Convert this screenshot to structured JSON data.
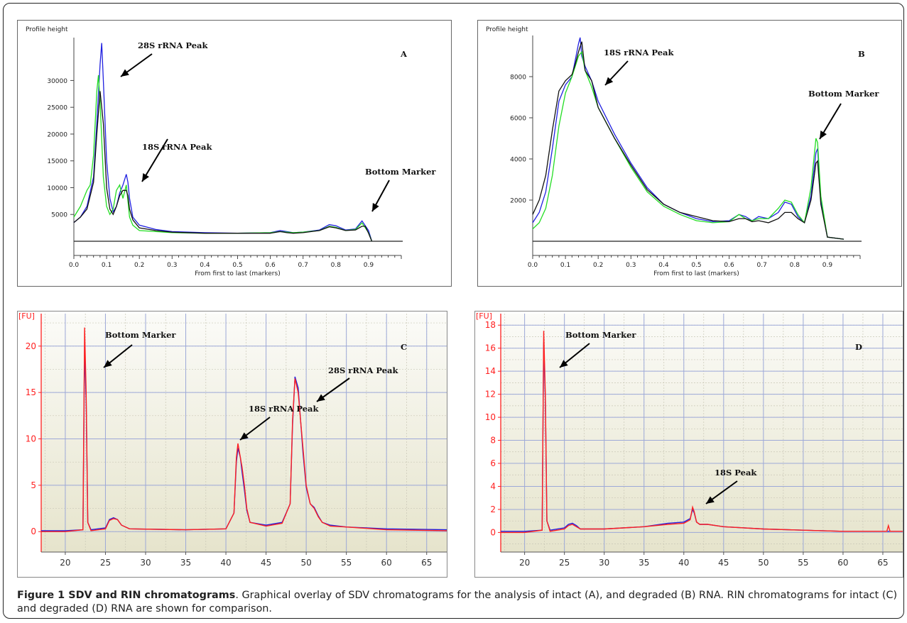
{
  "caption": {
    "title": "Figure 1 SDV and RIN chromatograms",
    "text": ". Graphical overlay of SDV chromatograms for the analysis of intact (A), and degraded (B) RNA. RIN chromatograms for intact (C) and degraded (D) RNA are shown for comparison."
  },
  "colors": {
    "blue": "#2020e0",
    "green": "#22dd22",
    "black": "#111111",
    "red": "#ff2020",
    "fu_axis": "#ff2020"
  },
  "chart_data": [
    {
      "id": "A",
      "type": "line",
      "panel_letter": "A",
      "ylabel": "Profile height",
      "xlabel": "From first to last (markers)",
      "xlim": [
        0,
        1.0
      ],
      "ylim": [
        0,
        38000
      ],
      "xticks": [
        "0.0",
        "0.1",
        "0.2",
        "0.3",
        "0.4",
        "0.5",
        "0.6",
        "0.7",
        "0.8",
        "0.9"
      ],
      "yticks": [
        "5000",
        "10000",
        "15000",
        "20000",
        "25000",
        "30000"
      ],
      "ytick_values": [
        5000,
        10000,
        15000,
        20000,
        25000,
        30000
      ],
      "annotations": [
        "28S rRNA Peak",
        "18S rRNA Peak",
        "Bottom Marker"
      ],
      "series": [
        {
          "color": "blue",
          "x": [
            0,
            0.02,
            0.04,
            0.06,
            0.07,
            0.08,
            0.085,
            0.09,
            0.1,
            0.11,
            0.12,
            0.13,
            0.14,
            0.15,
            0.16,
            0.165,
            0.17,
            0.18,
            0.2,
            0.25,
            0.3,
            0.4,
            0.5,
            0.6,
            0.63,
            0.65,
            0.67,
            0.7,
            0.75,
            0.78,
            0.8,
            0.83,
            0.86,
            0.88,
            0.9,
            0.91
          ],
          "y": [
            3500,
            4500,
            6500,
            12000,
            22000,
            33000,
            37000,
            30000,
            15000,
            8000,
            5500,
            6500,
            9000,
            10500,
            12500,
            11000,
            8000,
            4500,
            3000,
            2200,
            1800,
            1600,
            1500,
            1600,
            2000,
            1800,
            1600,
            1700,
            2100,
            3100,
            2900,
            2100,
            2300,
            3800,
            2000,
            0
          ]
        },
        {
          "color": "green",
          "x": [
            0,
            0.02,
            0.04,
            0.05,
            0.06,
            0.07,
            0.075,
            0.08,
            0.09,
            0.1,
            0.11,
            0.12,
            0.13,
            0.14,
            0.15,
            0.16,
            0.17,
            0.18,
            0.2,
            0.25,
            0.3,
            0.4,
            0.5,
            0.6,
            0.63,
            0.65,
            0.67,
            0.7,
            0.75,
            0.78,
            0.8,
            0.83,
            0.86,
            0.88,
            0.9,
            0.91
          ],
          "y": [
            4500,
            6500,
            9500,
            10500,
            16000,
            28000,
            31000,
            26000,
            12000,
            6500,
            5000,
            6000,
            9500,
            10500,
            8000,
            10500,
            4500,
            3000,
            2000,
            1800,
            1600,
            1500,
            1500,
            1600,
            1800,
            1700,
            1600,
            1700,
            2000,
            2800,
            2600,
            2000,
            2200,
            3400,
            1600,
            0
          ]
        },
        {
          "color": "black",
          "x": [
            0,
            0.02,
            0.04,
            0.06,
            0.07,
            0.08,
            0.09,
            0.1,
            0.11,
            0.12,
            0.13,
            0.14,
            0.15,
            0.16,
            0.165,
            0.17,
            0.18,
            0.2,
            0.25,
            0.3,
            0.4,
            0.5,
            0.6,
            0.63,
            0.65,
            0.67,
            0.7,
            0.75,
            0.78,
            0.8,
            0.83,
            0.86,
            0.88,
            0.89,
            0.9,
            0.91
          ],
          "y": [
            3500,
            4500,
            6000,
            11000,
            20000,
            28000,
            22000,
            10000,
            6000,
            5000,
            6500,
            8500,
            9500,
            9500,
            8500,
            6000,
            4000,
            2500,
            2000,
            1700,
            1500,
            1500,
            1500,
            1800,
            1600,
            1500,
            1600,
            2000,
            2700,
            2500,
            2000,
            2100,
            2800,
            2800,
            1500,
            0
          ]
        }
      ]
    },
    {
      "id": "B",
      "type": "line",
      "panel_letter": "B",
      "ylabel": "Profile height",
      "xlabel": "From first to last (markers)",
      "xlim": [
        0,
        1.0
      ],
      "ylim": [
        0,
        10000
      ],
      "xticks": [
        "0.0",
        "0.1",
        "0.2",
        "0.3",
        "0.4",
        "0.5",
        "0.6",
        "0.7",
        "0.8",
        "0.9"
      ],
      "yticks": [
        "2000",
        "4000",
        "6000",
        "8000"
      ],
      "ytick_values": [
        2000,
        4000,
        6000,
        8000
      ],
      "annotations": [
        "18S rRNA Peak",
        "Bottom Marker"
      ],
      "series": [
        {
          "color": "blue",
          "x": [
            0,
            0.02,
            0.04,
            0.06,
            0.08,
            0.1,
            0.12,
            0.13,
            0.14,
            0.145,
            0.15,
            0.16,
            0.18,
            0.2,
            0.25,
            0.3,
            0.35,
            0.4,
            0.45,
            0.5,
            0.55,
            0.6,
            0.63,
            0.65,
            0.67,
            0.69,
            0.72,
            0.75,
            0.77,
            0.79,
            0.81,
            0.83,
            0.85,
            0.865,
            0.87,
            0.88,
            0.9,
            0.95
          ],
          "y": [
            900,
            1400,
            2400,
            4500,
            6800,
            7600,
            8000,
            8800,
            9600,
            9900,
            9000,
            8500,
            7800,
            6800,
            5200,
            3800,
            2600,
            1800,
            1400,
            1100,
            950,
            1000,
            1300,
            1200,
            1000,
            1200,
            1100,
            1400,
            1900,
            1800,
            1200,
            900,
            2200,
            4300,
            4500,
            2000,
            200,
            100
          ]
        },
        {
          "color": "green",
          "x": [
            0,
            0.02,
            0.04,
            0.06,
            0.08,
            0.1,
            0.12,
            0.14,
            0.15,
            0.16,
            0.18,
            0.2,
            0.25,
            0.3,
            0.35,
            0.4,
            0.45,
            0.5,
            0.55,
            0.6,
            0.63,
            0.65,
            0.67,
            0.69,
            0.72,
            0.75,
            0.77,
            0.79,
            0.81,
            0.83,
            0.85,
            0.865,
            0.87,
            0.88,
            0.9,
            0.95
          ],
          "y": [
            600,
            900,
            1600,
            3200,
            5600,
            7200,
            8000,
            9000,
            9200,
            8300,
            7500,
            6500,
            5000,
            3600,
            2400,
            1700,
            1300,
            1000,
            900,
            950,
            1300,
            1100,
            1000,
            1100,
            1100,
            1600,
            2000,
            1900,
            1300,
            900,
            2600,
            5000,
            4800,
            2200,
            200,
            100
          ]
        },
        {
          "color": "black",
          "x": [
            0,
            0.02,
            0.04,
            0.06,
            0.08,
            0.1,
            0.12,
            0.13,
            0.14,
            0.15,
            0.16,
            0.18,
            0.2,
            0.25,
            0.3,
            0.35,
            0.4,
            0.45,
            0.5,
            0.55,
            0.6,
            0.63,
            0.65,
            0.67,
            0.69,
            0.72,
            0.75,
            0.77,
            0.79,
            0.81,
            0.83,
            0.85,
            0.865,
            0.87,
            0.88,
            0.9,
            0.95
          ],
          "y": [
            1300,
            2000,
            3200,
            5400,
            7300,
            7800,
            8100,
            8600,
            9200,
            9700,
            8300,
            7800,
            6500,
            5000,
            3700,
            2500,
            1800,
            1400,
            1200,
            1000,
            950,
            1100,
            1100,
            950,
            1000,
            900,
            1100,
            1400,
            1400,
            1100,
            900,
            2000,
            3800,
            3900,
            1800,
            200,
            100
          ]
        }
      ]
    },
    {
      "id": "C",
      "type": "line",
      "panel_letter": "C",
      "ylabel": "[FU]",
      "xlim": [
        17,
        67.5
      ],
      "ylim": [
        -2.2,
        23.5
      ],
      "xticks": [
        "20",
        "25",
        "30",
        "35",
        "40",
        "45",
        "50",
        "55",
        "60",
        "65"
      ],
      "xtick_values": [
        20,
        25,
        30,
        35,
        40,
        45,
        50,
        55,
        60,
        65
      ],
      "yticks": [
        "0",
        "5",
        "10",
        "15",
        "20"
      ],
      "ytick_values": [
        0,
        5,
        10,
        15,
        20
      ],
      "annotations": [
        "Bottom Marker",
        "18S rRNA Peak",
        "28S rRNA Peak"
      ],
      "series": [
        {
          "color": "red",
          "x": [
            17,
            20,
            22.2,
            22.4,
            22.6,
            22.8,
            23.2,
            25,
            25.5,
            26,
            26.5,
            27,
            28,
            35,
            40,
            41,
            41.3,
            41.5,
            41.8,
            42,
            42.3,
            42.6,
            43,
            45,
            47,
            48,
            48.3,
            48.6,
            49,
            49.3,
            49.6,
            50,
            50.5,
            51,
            51.5,
            52,
            53,
            55,
            60,
            67.5
          ],
          "y": [
            0,
            0,
            0.2,
            22,
            15,
            1,
            0.1,
            0.3,
            1.2,
            1.4,
            1.3,
            0.7,
            0.3,
            0.2,
            0.3,
            2,
            8,
            9.5,
            8,
            7,
            5,
            2.5,
            1,
            0.6,
            0.9,
            3,
            12,
            16.5,
            15,
            12,
            9,
            5,
            3,
            2.5,
            1.6,
            1,
            0.6,
            0.5,
            0.2,
            0.1
          ]
        },
        {
          "color": "blue",
          "x": [
            17,
            20,
            22.2,
            22.4,
            22.6,
            22.8,
            23.2,
            25,
            25.5,
            26,
            26.5,
            27,
            28,
            35,
            40,
            41,
            41.3,
            41.5,
            41.8,
            42,
            42.3,
            42.6,
            43,
            45,
            47,
            48,
            48.3,
            48.6,
            49,
            49.3,
            49.6,
            50,
            50.5,
            51,
            51.5,
            52,
            53,
            55,
            60,
            67.5
          ],
          "y": [
            0.1,
            0.1,
            0.2,
            20,
            14,
            1,
            0.2,
            0.4,
            1.3,
            1.5,
            1.3,
            0.7,
            0.3,
            0.2,
            0.3,
            2,
            7.5,
            9,
            8,
            6.5,
            4.5,
            2.3,
            1,
            0.7,
            1,
            3,
            11.5,
            16.7,
            15.5,
            12,
            8.5,
            4.8,
            3,
            2.6,
            1.7,
            1,
            0.7,
            0.5,
            0.3,
            0.2
          ]
        }
      ]
    },
    {
      "id": "D",
      "type": "line",
      "panel_letter": "D",
      "ylabel": "[FU]",
      "xlim": [
        17,
        67.5
      ],
      "ylim": [
        -1.7,
        19
      ],
      "xticks": [
        "20",
        "25",
        "30",
        "35",
        "40",
        "45",
        "50",
        "55",
        "60",
        "65"
      ],
      "xtick_values": [
        20,
        25,
        30,
        35,
        40,
        45,
        50,
        55,
        60,
        65
      ],
      "yticks": [
        "0",
        "2",
        "4",
        "6",
        "8",
        "10",
        "12",
        "14",
        "16",
        "18"
      ],
      "ytick_values": [
        0,
        2,
        4,
        6,
        8,
        10,
        12,
        14,
        16,
        18
      ],
      "annotations": [
        "Bottom Marker",
        "18S Peak"
      ],
      "series": [
        {
          "color": "red",
          "x": [
            17,
            20,
            22.2,
            22.4,
            22.6,
            22.8,
            23.2,
            25,
            25.5,
            26,
            26.5,
            27,
            30,
            35,
            38,
            40,
            40.8,
            41.1,
            41.3,
            41.6,
            42,
            43,
            45,
            50,
            55,
            60,
            65.5,
            65.7,
            65.9,
            67.5
          ],
          "y": [
            0,
            0,
            0.2,
            17.5,
            12,
            1,
            0.1,
            0.3,
            0.6,
            0.7,
            0.5,
            0.3,
            0.3,
            0.5,
            0.7,
            0.8,
            1.1,
            2.2,
            1.8,
            0.9,
            0.7,
            0.7,
            0.5,
            0.3,
            0.2,
            0.1,
            0.1,
            0.6,
            0.1,
            0.1
          ]
        },
        {
          "color": "blue",
          "x": [
            17,
            20,
            22.2,
            22.4,
            22.6,
            22.8,
            23.2,
            25,
            25.5,
            26,
            26.5,
            27,
            30,
            35,
            38,
            40,
            40.8,
            41.1,
            41.3,
            41.6,
            42,
            43,
            45,
            50,
            55,
            60,
            65,
            67.5
          ],
          "y": [
            0.1,
            0.1,
            0.2,
            16.5,
            11.5,
            1,
            0.2,
            0.4,
            0.7,
            0.8,
            0.6,
            0.3,
            0.3,
            0.5,
            0.8,
            0.9,
            1.2,
            2.0,
            1.7,
            0.9,
            0.7,
            0.7,
            0.5,
            0.3,
            0.2,
            0.1,
            0.1,
            0.1
          ]
        }
      ]
    }
  ]
}
